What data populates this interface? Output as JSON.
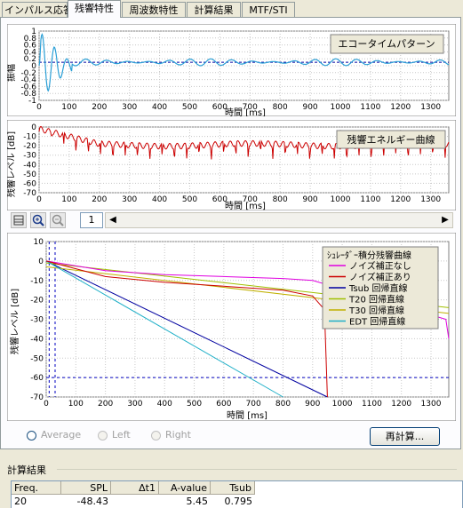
{
  "tabs": [
    {
      "label": "インパルス応答",
      "active": false
    },
    {
      "label": "残響特性",
      "active": true
    },
    {
      "label": "周波数特性",
      "active": false
    },
    {
      "label": "計算結果",
      "active": false
    },
    {
      "label": "MTF/STI",
      "active": false
    }
  ],
  "echo_chart": {
    "legend": "エコータイムパターン",
    "ylabel": "振幅",
    "xlabel": "時間 [ms]",
    "yticks": [
      "1",
      "0.8",
      "0.6",
      "0.4",
      "0.2",
      "0",
      "-0.2",
      "-0.4",
      "-0.6",
      "-0.8",
      "-1"
    ],
    "xticks": [
      "0",
      "100",
      "200",
      "300",
      "400",
      "500",
      "600",
      "700",
      "800",
      "900",
      "1000",
      "1100",
      "1200",
      "1300"
    ],
    "color": "#2a9fd6"
  },
  "energy_chart": {
    "legend": "残響エネルギー曲線",
    "ylabel": "残響レベル [dB]",
    "xlabel": "時間 [ms]",
    "yticks": [
      "0",
      "-10",
      "-20",
      "-30",
      "-40",
      "-50",
      "-60",
      "-70"
    ],
    "xticks": [
      "0",
      "100",
      "200",
      "300",
      "400",
      "500",
      "600",
      "700",
      "800",
      "900",
      "1000",
      "1100",
      "1200",
      "1300"
    ],
    "color": "#cc0000"
  },
  "toolbar": {
    "icons": [
      "list-icon",
      "zoom-in-icon",
      "zoom-out-icon"
    ],
    "page": "1",
    "left_arrow": "◀",
    "right_arrow": "▶"
  },
  "decay_chart": {
    "ylabel": "残響レベル [dB]",
    "xlabel": "時間 [ms]",
    "yticks": [
      "10",
      "0",
      "-10",
      "-20",
      "-30",
      "-40",
      "-50",
      "-60",
      "-70"
    ],
    "xticks": [
      "0",
      "100",
      "200",
      "300",
      "400",
      "500",
      "600",
      "700",
      "800",
      "900",
      "1000",
      "1100",
      "1200",
      "1300"
    ],
    "legend_title": "ｼｭﾚｰﾀﾞｰ積分残響曲線",
    "legend": [
      {
        "label": "ノイズ補正なし",
        "color": "#e000e0"
      },
      {
        "label": "ノイズ補正あり",
        "color": "#cc0000"
      },
      {
        "label": "Tsub 回帰直線",
        "color": "#0000a0"
      },
      {
        "label": "T20 回帰直線",
        "color": "#a0c000"
      },
      {
        "label": "T30 回帰直線",
        "color": "#c0b000"
      },
      {
        "label": "EDT 回帰直線",
        "color": "#20b0c8"
      }
    ]
  },
  "chart_data": [
    {
      "type": "line",
      "title": "エコータイムパターン",
      "xlabel": "時間 [ms]",
      "ylabel": "振幅",
      "xlim": [
        0,
        1360
      ],
      "ylim": [
        -1,
        1
      ],
      "series": [
        {
          "name": "エコータイムパターン",
          "x": [
            0,
            20,
            40,
            60,
            80,
            100,
            120,
            200,
            300,
            400,
            500,
            600,
            700,
            800,
            900,
            1000,
            1100,
            1200,
            1300,
            1360
          ],
          "y": [
            0,
            1.0,
            -0.9,
            0.95,
            -0.6,
            0.3,
            0.1,
            0.1,
            0.1,
            0.1,
            0.1,
            0.12,
            0.1,
            0.1,
            0.12,
            0.1,
            0.1,
            0.1,
            0.1,
            0.1
          ]
        }
      ]
    },
    {
      "type": "line",
      "title": "残響エネルギー曲線",
      "xlabel": "時間 [ms]",
      "ylabel": "残響レベル [dB]",
      "xlim": [
        0,
        1360
      ],
      "ylim": [
        -70,
        0
      ],
      "series": [
        {
          "name": "残響エネルギー曲線",
          "x": [
            0,
            50,
            100,
            150,
            200,
            300,
            400,
            500,
            600,
            700,
            800,
            900,
            1000,
            1100,
            1200,
            1300,
            1360
          ],
          "y": [
            -2,
            -5,
            -8,
            -12,
            -18,
            -20,
            -20,
            -19,
            -19,
            -18,
            -19,
            -20,
            -20,
            -20,
            -20,
            -20,
            -20
          ]
        }
      ]
    },
    {
      "type": "line",
      "title": "",
      "xlabel": "時間 [ms]",
      "ylabel": "残響レベル [dB]",
      "xlim": [
        0,
        1360
      ],
      "ylim": [
        -70,
        10
      ],
      "series": [
        {
          "name": "ノイズ補正なし",
          "x": [
            0,
            200,
            400,
            600,
            800,
            900,
            1350,
            1360
          ],
          "y": [
            0,
            -5,
            -7,
            -8,
            -9,
            -10,
            -30,
            -40
          ]
        },
        {
          "name": "ノイズ補正あり",
          "x": [
            0,
            200,
            400,
            600,
            800,
            900,
            940,
            950
          ],
          "y": [
            0,
            -8,
            -11,
            -13,
            -15,
            -18,
            -25,
            -70
          ]
        },
        {
          "name": "Tsub 回帰直線",
          "x": [
            0,
            950
          ],
          "y": [
            0,
            -72
          ]
        },
        {
          "name": "T20 回帰直線",
          "x": [
            0,
            1360
          ],
          "y": [
            -1,
            -24
          ]
        },
        {
          "name": "T30 回帰直線",
          "x": [
            0,
            1360
          ],
          "y": [
            -3,
            -27
          ]
        },
        {
          "name": "EDT 回帰直線",
          "x": [
            0,
            800
          ],
          "y": [
            0,
            -70
          ]
        }
      ]
    }
  ],
  "options": {
    "average": "Average",
    "left": "Left",
    "right": "Right",
    "recalc": "再計算..."
  },
  "results": {
    "section_label": "計算結果",
    "columns": [
      "Freq.",
      "SPL",
      "Δt1",
      "A-value",
      "Tsub"
    ],
    "rows": [
      [
        "20",
        "-48.43",
        "",
        "5.45",
        "0.795"
      ]
    ]
  }
}
